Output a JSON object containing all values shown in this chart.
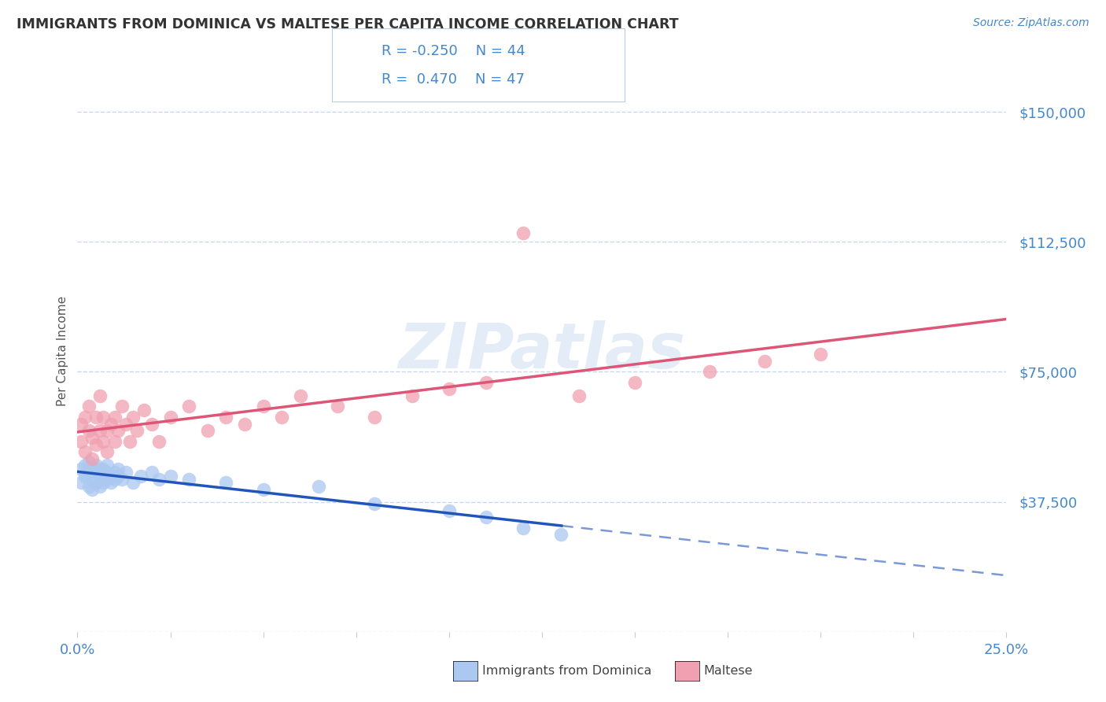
{
  "title": "IMMIGRANTS FROM DOMINICA VS MALTESE PER CAPITA INCOME CORRELATION CHART",
  "source": "Source: ZipAtlas.com",
  "ylabel": "Per Capita Income",
  "xlim": [
    0.0,
    0.25
  ],
  "ylim": [
    0,
    162000
  ],
  "yticks": [
    0,
    37500,
    75000,
    112500,
    150000
  ],
  "ytick_labels": [
    "",
    "$37,500",
    "$75,000",
    "$112,500",
    "$150,000"
  ],
  "background_color": "#ffffff",
  "watermark": "ZIPatlas",
  "dominica_R": -0.25,
  "dominica_N": 44,
  "maltese_R": 0.47,
  "maltese_N": 47,
  "dominica_scatter_color": "#aac8f0",
  "maltese_scatter_color": "#f0a0b0",
  "dominica_line_color": "#2255bb",
  "maltese_line_color": "#dd5577",
  "grid_color": "#c8d8ec",
  "tick_label_color": "#4488cc",
  "title_color": "#333333",
  "source_color": "#4488cc",
  "legend_text_color": "#4488cc",
  "dom_x": [
    0.001,
    0.001,
    0.002,
    0.002,
    0.003,
    0.003,
    0.003,
    0.004,
    0.004,
    0.004,
    0.005,
    0.005,
    0.005,
    0.006,
    0.006,
    0.006,
    0.007,
    0.007,
    0.007,
    0.008,
    0.008,
    0.008,
    0.009,
    0.009,
    0.01,
    0.01,
    0.011,
    0.011,
    0.012,
    0.013,
    0.015,
    0.017,
    0.02,
    0.022,
    0.025,
    0.03,
    0.04,
    0.05,
    0.065,
    0.08,
    0.1,
    0.11,
    0.12,
    0.13
  ],
  "dom_y": [
    47000,
    43000,
    45000,
    48000,
    46000,
    42000,
    49000,
    44000,
    47000,
    41000,
    46000,
    43000,
    48000,
    45000,
    47000,
    42000,
    44000,
    47000,
    43000,
    46000,
    44000,
    48000,
    45000,
    43000,
    46000,
    44000,
    45000,
    47000,
    44000,
    46000,
    43000,
    45000,
    46000,
    44000,
    45000,
    44000,
    43000,
    41000,
    42000,
    37000,
    35000,
    33000,
    30000,
    28000
  ],
  "mal_x": [
    0.001,
    0.001,
    0.002,
    0.002,
    0.003,
    0.003,
    0.004,
    0.004,
    0.005,
    0.005,
    0.006,
    0.006,
    0.007,
    0.007,
    0.008,
    0.008,
    0.009,
    0.01,
    0.01,
    0.011,
    0.012,
    0.013,
    0.014,
    0.015,
    0.016,
    0.018,
    0.02,
    0.022,
    0.025,
    0.03,
    0.035,
    0.04,
    0.045,
    0.05,
    0.055,
    0.06,
    0.07,
    0.08,
    0.09,
    0.1,
    0.11,
    0.12,
    0.135,
    0.15,
    0.17,
    0.185,
    0.2
  ],
  "mal_y": [
    55000,
    60000,
    52000,
    62000,
    58000,
    65000,
    50000,
    56000,
    54000,
    62000,
    58000,
    68000,
    55000,
    62000,
    58000,
    52000,
    60000,
    55000,
    62000,
    58000,
    65000,
    60000,
    55000,
    62000,
    58000,
    64000,
    60000,
    55000,
    62000,
    65000,
    58000,
    62000,
    60000,
    65000,
    62000,
    68000,
    65000,
    62000,
    68000,
    70000,
    72000,
    115000,
    68000,
    72000,
    75000,
    78000,
    80000
  ]
}
